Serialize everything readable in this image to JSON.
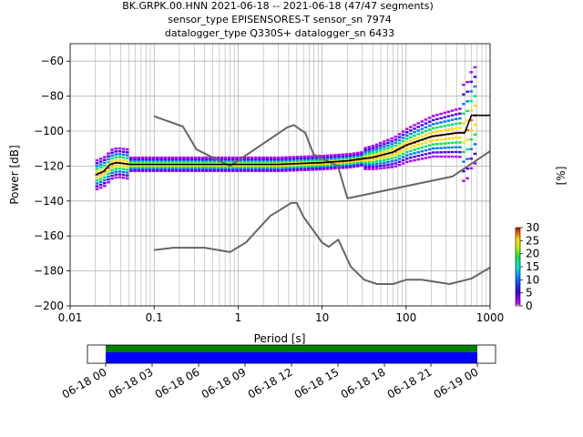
{
  "title": {
    "line1": "BK.GRPK.00.HNN   2021-06-18 -- 2021-06-18  (47/47 segments)",
    "line2": "sensor_type EPISENSORES-T sensor_sn 7974",
    "line3": "datalogger_type Q330S+ datalogger_sn 6433"
  },
  "chart_data": [
    {
      "type": "line",
      "title": "BK.GRPK.00.HNN   2021-06-18 -- 2021-06-18  (47/47 segments)",
      "xlabel": "Period [s]",
      "ylabel": "Power [dB]",
      "xscale": "log",
      "xlim": [
        0.01,
        1000
      ],
      "ylim": [
        -200,
        -50
      ],
      "xticks": [
        "0.01",
        "0.1",
        "1",
        "10",
        "100",
        "1000"
      ],
      "yticks": [
        "−60",
        "−80",
        "−100",
        "−120",
        "−140",
        "−160",
        "−180",
        "−200"
      ],
      "grid": true,
      "colorbar": {
        "label": "[%]",
        "ticks": [
          "0",
          "5",
          "10",
          "15",
          "20",
          "25",
          "30"
        ],
        "range": [
          0,
          30
        ],
        "colormap": "pqlx"
      },
      "series": [
        {
          "name": "",
          "role": "noise-model-high",
          "color": "#666666",
          "x": [
            0.1,
            0.22,
            0.32,
            0.8,
            3.8,
            4.6,
            6.3,
            7.9,
            15.4,
            20,
            354.8,
            1000
          ],
          "y": [
            -91.5,
            -97.4,
            -110.5,
            -120,
            -98,
            -96.5,
            -101,
            -113.3,
            -120,
            -138.5,
            -126,
            -111.5
          ]
        },
        {
          "name": "",
          "role": "noise-model-low",
          "color": "#666666",
          "x": [
            0.1,
            0.17,
            0.4,
            0.8,
            1.24,
            2.4,
            4.3,
            5.0,
            6.0,
            10.0,
            12.0,
            15.6,
            21.9,
            31.6,
            45,
            70,
            101,
            154,
            328,
            600,
            1000
          ],
          "y": [
            -168,
            -166.7,
            -166.7,
            -169.2,
            -163.7,
            -148.6,
            -141.1,
            -141.1,
            -149,
            -163.8,
            -166.2,
            -162.1,
            -177.5,
            -185,
            -187.5,
            -187.5,
            -185,
            -185,
            -187.5,
            -184.4,
            -178
          ]
        },
        {
          "name": "",
          "role": "mode",
          "color": "#000000",
          "x": [
            0.02,
            0.025,
            0.03,
            0.035,
            0.05,
            0.1,
            0.3,
            1,
            3,
            10,
            20,
            40,
            70,
            100,
            200,
            400,
            500,
            600,
            1000
          ],
          "y": [
            -125,
            -123,
            -119,
            -118,
            -119,
            -119,
            -119,
            -119,
            -119,
            -118,
            -117,
            -115,
            -112,
            -108,
            -103,
            -101,
            -101,
            -91,
            -91
          ]
        }
      ]
    },
    {
      "type": "timeline",
      "xlim": [
        "06-18 00",
        "06-19 00"
      ],
      "xticks": [
        "06-18 00",
        "06-18 03",
        "06-18 06",
        "06-18 09",
        "06-18 12",
        "06-18 15",
        "06-18 18",
        "06-18 21",
        "06-19 00"
      ],
      "bars": [
        {
          "label": "",
          "color": "#008000",
          "start": "06-18 00",
          "end": "06-19 00"
        },
        {
          "label": "",
          "color": "#0000ff",
          "start": "06-18 00",
          "end": "06-19 00"
        }
      ]
    }
  ]
}
